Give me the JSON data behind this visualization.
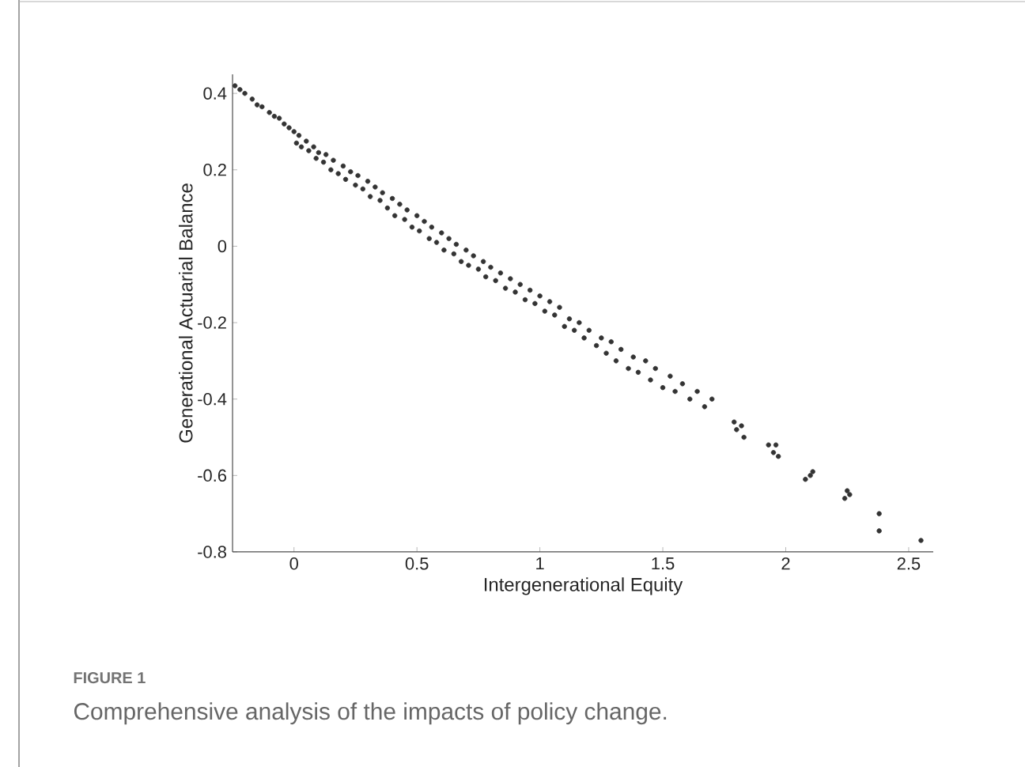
{
  "chart_data": {
    "type": "scatter",
    "xlabel": "Intergenerational Equity",
    "ylabel": "Generational Actuarial Balance",
    "annotations": [
      "FIGURE 1",
      "Comprehensive analysis of the impacts of policy change."
    ],
    "xlim": [
      -0.25,
      2.6
    ],
    "ylim": [
      -0.8,
      0.45
    ],
    "xticks": [
      0,
      0.5,
      1,
      1.5,
      2,
      2.5
    ],
    "yticks": [
      -0.8,
      -0.6,
      -0.4,
      -0.2,
      0,
      0.2,
      0.4
    ],
    "grid": false,
    "series": [
      {
        "color": "#333333",
        "x": [
          -0.24,
          -0.22,
          -0.2,
          -0.17,
          -0.15,
          -0.13,
          -0.1,
          -0.08,
          -0.06,
          -0.04,
          -0.02,
          0,
          0.01,
          0.02,
          0.03,
          0.05,
          0.06,
          0.08,
          0.09,
          0.1,
          0.12,
          0.13,
          0.15,
          0.16,
          0.18,
          0.2,
          0.21,
          0.23,
          0.25,
          0.26,
          0.28,
          0.3,
          0.31,
          0.33,
          0.35,
          0.36,
          0.38,
          0.4,
          0.41,
          0.43,
          0.45,
          0.46,
          0.48,
          0.5,
          0.51,
          0.53,
          0.55,
          0.56,
          0.58,
          0.6,
          0.61,
          0.63,
          0.65,
          0.66,
          0.68,
          0.7,
          0.71,
          0.73,
          0.75,
          0.77,
          0.78,
          0.8,
          0.82,
          0.84,
          0.86,
          0.88,
          0.9,
          0.92,
          0.94,
          0.96,
          0.98,
          1.0,
          1.02,
          1.04,
          1.06,
          1.08,
          1.1,
          1.12,
          1.14,
          1.16,
          1.18,
          1.2,
          1.23,
          1.25,
          1.27,
          1.29,
          1.31,
          1.33,
          1.36,
          1.38,
          1.4,
          1.43,
          1.45,
          1.47,
          1.5,
          1.53,
          1.55,
          1.58,
          1.61,
          1.64,
          1.67,
          1.7,
          1.79,
          1.8,
          1.82,
          1.83,
          1.93,
          1.95,
          1.96,
          1.97,
          2.08,
          2.1,
          2.11,
          2.24,
          2.25,
          2.26,
          2.38,
          2.38,
          2.55
        ],
        "values": [
          0.42,
          0.41,
          0.4,
          0.385,
          0.37,
          0.365,
          0.35,
          0.34,
          0.335,
          0.32,
          0.31,
          0.3,
          0.27,
          0.29,
          0.26,
          0.275,
          0.25,
          0.26,
          0.23,
          0.245,
          0.22,
          0.24,
          0.2,
          0.225,
          0.19,
          0.21,
          0.175,
          0.195,
          0.16,
          0.185,
          0.15,
          0.17,
          0.13,
          0.155,
          0.12,
          0.14,
          0.1,
          0.125,
          0.08,
          0.11,
          0.07,
          0.095,
          0.05,
          0.08,
          0.04,
          0.065,
          0.02,
          0.05,
          0.01,
          0.035,
          -0.01,
          0.02,
          -0.02,
          0.005,
          -0.04,
          -0.01,
          -0.05,
          -0.025,
          -0.06,
          -0.04,
          -0.08,
          -0.055,
          -0.09,
          -0.07,
          -0.11,
          -0.085,
          -0.12,
          -0.1,
          -0.14,
          -0.115,
          -0.15,
          -0.13,
          -0.17,
          -0.145,
          -0.18,
          -0.16,
          -0.21,
          -0.19,
          -0.22,
          -0.2,
          -0.24,
          -0.22,
          -0.26,
          -0.24,
          -0.28,
          -0.25,
          -0.3,
          -0.27,
          -0.32,
          -0.29,
          -0.33,
          -0.3,
          -0.35,
          -0.32,
          -0.37,
          -0.34,
          -0.38,
          -0.36,
          -0.4,
          -0.38,
          -0.42,
          -0.4,
          -0.46,
          -0.48,
          -0.47,
          -0.5,
          -0.52,
          -0.54,
          -0.52,
          -0.55,
          -0.61,
          -0.6,
          -0.59,
          -0.66,
          -0.64,
          -0.65,
          -0.7,
          -0.745,
          -0.77
        ]
      }
    ]
  }
}
